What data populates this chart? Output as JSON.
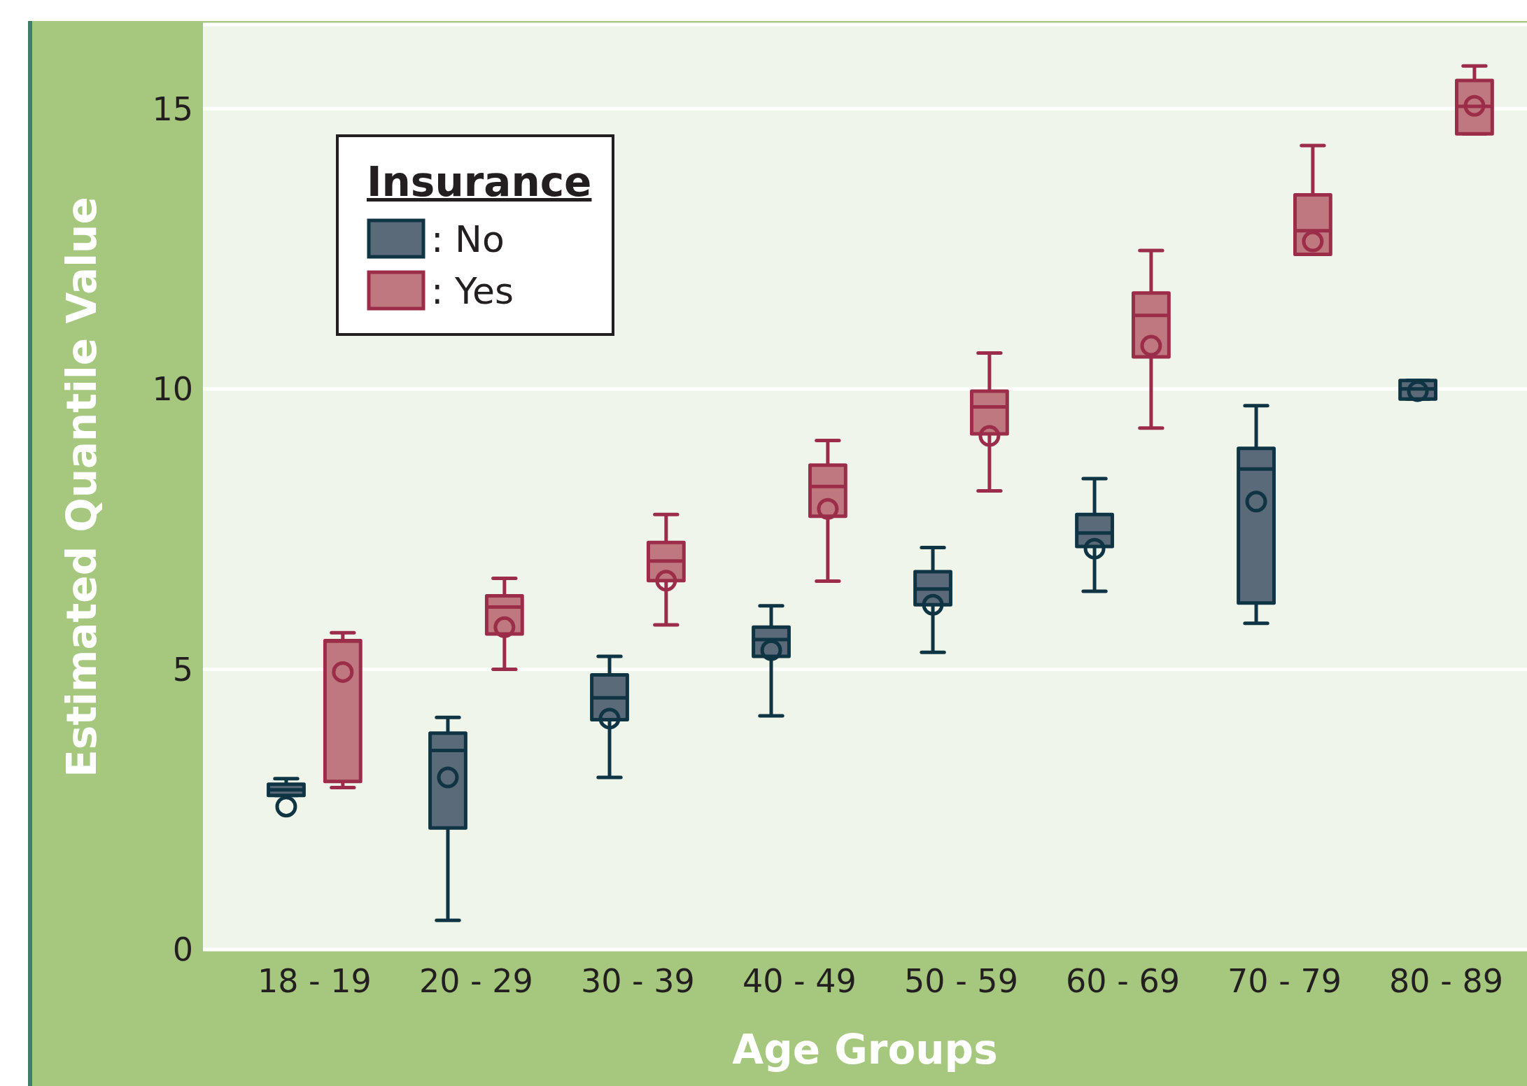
{
  "chart_data": {
    "type": "box",
    "xlabel": "Age Groups",
    "ylabel": "Estimated Quantile Value",
    "legend_title": "Insurance",
    "legend": "top left",
    "grid": "y",
    "categories": [
      "18 - 19",
      "20 - 29",
      "30 - 39",
      "40 - 49",
      "50 - 59",
      "60 - 69",
      "70 - 79",
      "80 - 89"
    ],
    "ylim": [
      0,
      16.5
    ],
    "yticks": [
      0,
      5,
      10,
      15
    ],
    "series": [
      {
        "name": ": No",
        "color": "#5a6a78",
        "boxes": [
          {
            "low": 2.75,
            "q1": 2.75,
            "median": 2.85,
            "q3": 2.95,
            "high": 3.05,
            "mean": 2.55
          },
          {
            "low": 0.52,
            "q1": 2.17,
            "median": 3.55,
            "q3": 3.86,
            "high": 4.14,
            "mean": 3.07
          },
          {
            "low": 3.07,
            "q1": 4.1,
            "median": 4.49,
            "q3": 4.9,
            "high": 5.23,
            "mean": 4.12
          },
          {
            "low": 4.17,
            "q1": 5.23,
            "median": 5.53,
            "q3": 5.75,
            "high": 6.13,
            "mean": 5.34
          },
          {
            "low": 5.3,
            "q1": 6.15,
            "median": 6.43,
            "q3": 6.74,
            "high": 7.17,
            "mean": 6.15
          },
          {
            "low": 6.39,
            "q1": 7.19,
            "median": 7.43,
            "q3": 7.76,
            "high": 8.4,
            "mean": 7.15
          },
          {
            "low": 5.82,
            "q1": 6.18,
            "median": 8.57,
            "q3": 8.94,
            "high": 9.7,
            "mean": 7.99
          },
          {
            "low": 9.82,
            "q1": 9.82,
            "median": 10.0,
            "q3": 10.15,
            "high": 10.15,
            "mean": 9.96
          }
        ]
      },
      {
        "name": ": Yes",
        "color": "#bf7880",
        "boxes": [
          {
            "low": 2.89,
            "q1": 3.0,
            "median": 5.5,
            "q3": 5.51,
            "high": 5.65,
            "mean": 4.95
          },
          {
            "low": 5.0,
            "q1": 5.63,
            "median": 6.11,
            "q3": 6.31,
            "high": 6.62,
            "mean": 5.75
          },
          {
            "low": 5.79,
            "q1": 6.58,
            "median": 6.93,
            "q3": 7.26,
            "high": 7.76,
            "mean": 6.58
          },
          {
            "low": 6.57,
            "q1": 7.73,
            "median": 8.26,
            "q3": 8.64,
            "high": 9.08,
            "mean": 7.86
          },
          {
            "low": 8.18,
            "q1": 9.2,
            "median": 9.68,
            "q3": 9.96,
            "high": 10.64,
            "mean": 9.16
          },
          {
            "low": 9.3,
            "q1": 10.57,
            "median": 11.31,
            "q3": 11.71,
            "high": 12.47,
            "mean": 10.77
          },
          {
            "low": 12.4,
            "q1": 12.4,
            "median": 12.82,
            "q3": 13.46,
            "high": 14.34,
            "mean": 12.63
          },
          {
            "low": 14.55,
            "q1": 14.55,
            "median": 15.04,
            "q3": 15.5,
            "high": 15.76,
            "mean": 15.05
          }
        ]
      }
    ]
  }
}
